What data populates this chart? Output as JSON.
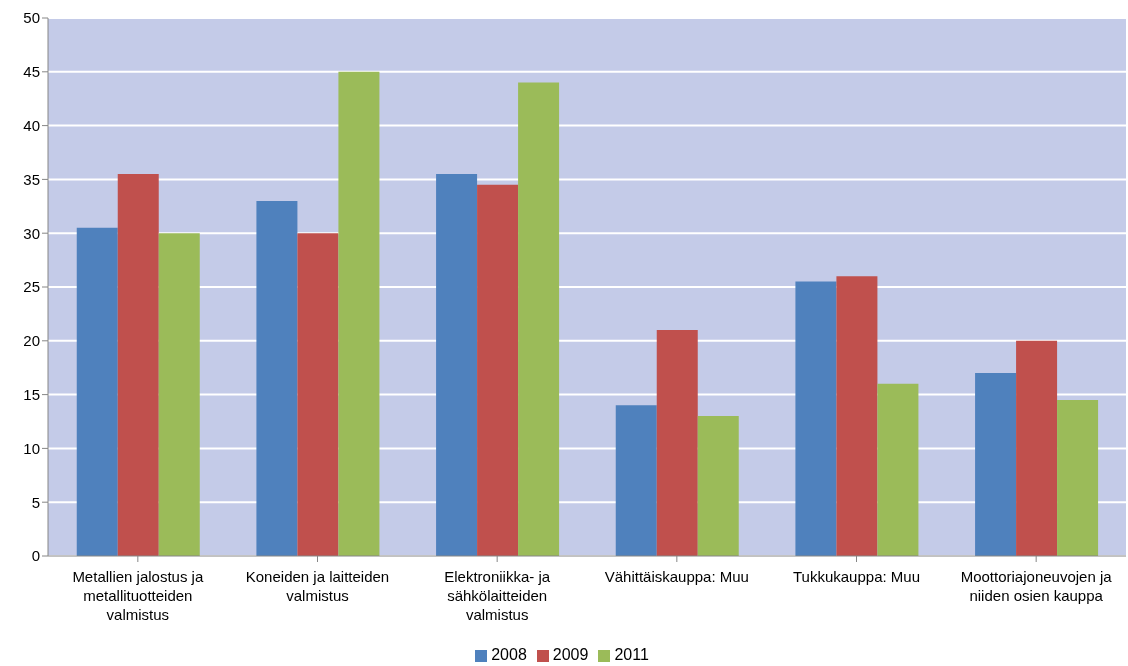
{
  "chart_data": {
    "type": "bar",
    "categories": [
      "Metallien jalostus ja metallituotteiden valmistus",
      "Koneiden ja laitteiden valmistus",
      "Elektroniikka- ja sähkölaitteiden valmistus",
      "Vähittäiskauppa: Muu",
      "Tukkukauppa: Muu",
      "Moottoriajoneuvojen ja niiden osien kauppa"
    ],
    "series": [
      {
        "name": "2008",
        "color": "#4f81bd",
        "values": [
          30.5,
          33,
          35.5,
          14,
          25.5,
          17
        ]
      },
      {
        "name": "2009",
        "color": "#c0504d",
        "values": [
          35.5,
          30,
          34.5,
          21,
          26,
          20
        ]
      },
      {
        "name": "2011",
        "color": "#9bbb59",
        "values": [
          30,
          45,
          44,
          13,
          16,
          14.5
        ]
      }
    ],
    "ylim": [
      0,
      50
    ],
    "yticks": [
      0,
      5,
      10,
      15,
      20,
      25,
      30,
      35,
      40,
      45,
      50
    ],
    "grid": "y",
    "legend": "bottom"
  }
}
